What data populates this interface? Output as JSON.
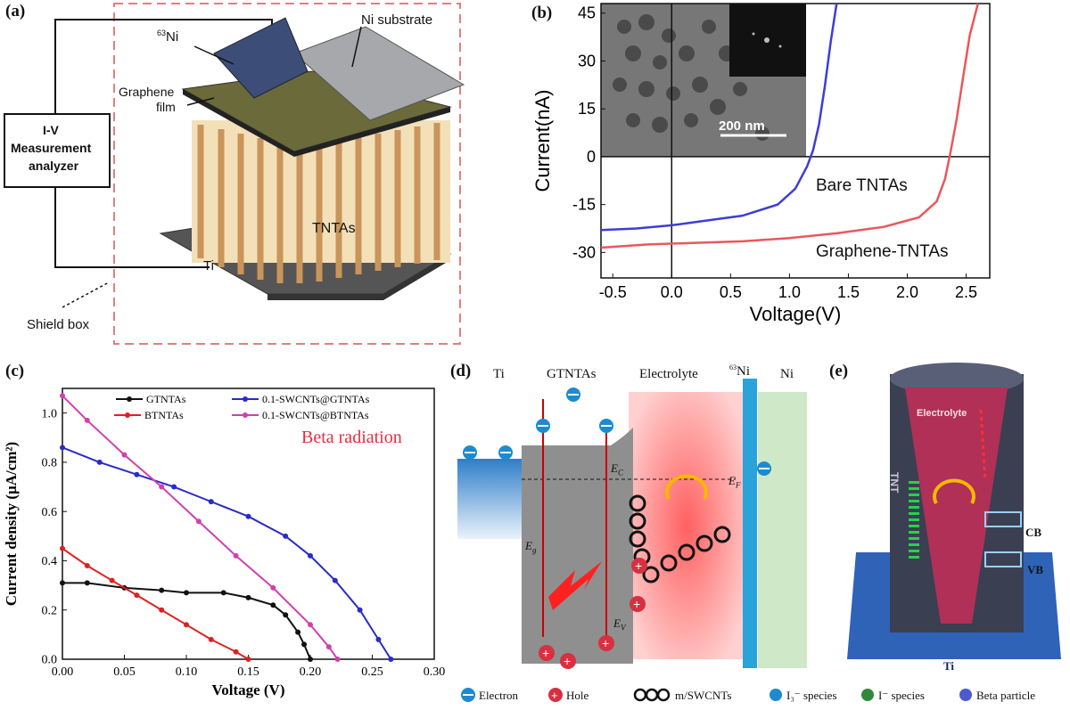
{
  "panel_a": {
    "label": "(a)",
    "ni_substrate": "Ni substrate",
    "ni63": "Ni",
    "ni63_sup": "63",
    "graphene_film_1": "Graphene",
    "graphene_film_2": "film",
    "iv_1": "I-V",
    "iv_2": "Measurement",
    "iv_3": "analyzer",
    "tntas": "TNTAs",
    "ti": "Ti",
    "shield_box": "Shield box"
  },
  "panel_b": {
    "label": "(b)",
    "scale": "200 nm",
    "bare": "Bare TNTAs",
    "graphene": "Graphene-TNTAs"
  },
  "panel_c": {
    "label": "(c)",
    "beta_radiation": "Beta radiation"
  },
  "panel_d": {
    "label": "(d)",
    "ti": "Ti",
    "gtntas": "GTNTAs",
    "electrolyte": "Electrolyte",
    "ni63": "Ni",
    "ni63_sup": "63",
    "ni": "Ni",
    "ecb": "E",
    "ecb_sub": "C",
    "ef": "E",
    "ef_sub": "F",
    "eg": "E",
    "eg_sub": "g",
    "ev": "E",
    "ev_sub": "V"
  },
  "panel_e": {
    "label": "(e)",
    "electrolyte": "Electrolyte",
    "tnt": "TNT",
    "cb": "CB",
    "vb": "VB",
    "ti": "Ti"
  },
  "legend_bottom": {
    "electron": "Electron",
    "hole": "Hole",
    "swcnt": "m/SWCNTs",
    "i3": "I₃⁻ species",
    "i_minus": "I⁻ species",
    "beta": "Beta particle"
  },
  "colors": {
    "blue_curve": "#3d3dd6",
    "red_curve": "#e8585c",
    "black": "#111111",
    "magenta": "#d040b0",
    "red_legend": "#e02020",
    "shield": "#e08080"
  },
  "chart_data": [
    {
      "id": "b",
      "type": "line",
      "xlabel": "Voltage(V)",
      "ylabel": "Current(nA)",
      "xlim": [
        -0.6,
        2.7
      ],
      "ylim": [
        -38,
        48
      ],
      "xticks": [
        "-0.5",
        "0.0",
        "0.5",
        "1.0",
        "1.5",
        "2.0",
        "2.5"
      ],
      "yticks": [
        "-30",
        "-15",
        "0",
        "15",
        "30",
        "45"
      ],
      "grid": false,
      "series": [
        {
          "name": "Bare TNTAs",
          "color": "#3d3dd6",
          "x": [
            -0.6,
            -0.3,
            0.0,
            0.3,
            0.6,
            0.9,
            1.05,
            1.15,
            1.2,
            1.25,
            1.3,
            1.35,
            1.4
          ],
          "y": [
            -23,
            -22.5,
            -21.5,
            -20,
            -18.5,
            -15,
            -10,
            -3,
            2,
            10,
            22,
            36,
            48
          ]
        },
        {
          "name": "Graphene-TNTAs",
          "color": "#e8585c",
          "x": [
            -0.6,
            -0.2,
            0.2,
            0.6,
            1.0,
            1.4,
            1.8,
            2.1,
            2.25,
            2.32,
            2.37,
            2.42,
            2.47,
            2.53,
            2.6
          ],
          "y": [
            -28.5,
            -27.5,
            -27,
            -26.5,
            -25.5,
            -24,
            -22,
            -19,
            -14,
            -7,
            2,
            12,
            24,
            38,
            48
          ]
        }
      ]
    },
    {
      "id": "c",
      "type": "line",
      "xlabel": "Voltage (V)",
      "ylabel": "Current density (μA/cm²)",
      "xlim": [
        0,
        0.3
      ],
      "ylim": [
        0,
        1.1
      ],
      "xticks": [
        "0.00",
        "0.05",
        "0.10",
        "0.15",
        "0.20",
        "0.25",
        "0.30"
      ],
      "yticks": [
        "0.0",
        "0.2",
        "0.4",
        "0.6",
        "0.8",
        "1.0"
      ],
      "grid": false,
      "series": [
        {
          "name": "GTNTAs",
          "color": "#111111",
          "x": [
            0,
            0.02,
            0.05,
            0.08,
            0.1,
            0.13,
            0.15,
            0.17,
            0.18,
            0.19,
            0.195,
            0.2
          ],
          "y": [
            0.31,
            0.31,
            0.29,
            0.28,
            0.27,
            0.27,
            0.25,
            0.22,
            0.18,
            0.11,
            0.06,
            0.0
          ]
        },
        {
          "name": "BTNTAs",
          "color": "#e02020",
          "x": [
            0,
            0.02,
            0.04,
            0.06,
            0.08,
            0.1,
            0.12,
            0.14,
            0.15
          ],
          "y": [
            0.45,
            0.38,
            0.32,
            0.26,
            0.2,
            0.14,
            0.08,
            0.03,
            0.0
          ]
        },
        {
          "name": "0.1-SWCNTs@GTNTAs",
          "color": "#2a2acc",
          "x": [
            0,
            0.03,
            0.06,
            0.09,
            0.12,
            0.15,
            0.18,
            0.2,
            0.22,
            0.24,
            0.255,
            0.265
          ],
          "y": [
            0.86,
            0.8,
            0.75,
            0.7,
            0.64,
            0.58,
            0.5,
            0.42,
            0.32,
            0.2,
            0.08,
            0.0
          ]
        },
        {
          "name": "0.1-SWCNTs@BTNTAs",
          "color": "#d040b0",
          "x": [
            0,
            0.02,
            0.05,
            0.08,
            0.11,
            0.14,
            0.17,
            0.2,
            0.215,
            0.222
          ],
          "y": [
            1.07,
            0.97,
            0.83,
            0.7,
            0.56,
            0.42,
            0.29,
            0.14,
            0.05,
            0.0
          ]
        }
      ]
    }
  ]
}
